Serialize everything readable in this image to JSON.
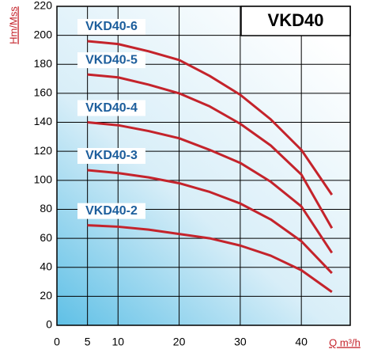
{
  "chart_data": {
    "type": "line",
    "title": "VKD40",
    "y_label": "Hm/Mss",
    "x_label": "Q m³/h",
    "x": [
      5,
      10,
      15,
      20,
      25,
      30,
      35,
      40,
      45
    ],
    "series": [
      {
        "name": "VKD40-6",
        "color": "#c4232b",
        "values": [
          196,
          194,
          189,
          183,
          172,
          159,
          142,
          121,
          90
        ]
      },
      {
        "name": "VKD40-5",
        "color": "#c4232b",
        "values": [
          173,
          171,
          166,
          160,
          151,
          139,
          124,
          104,
          67
        ]
      },
      {
        "name": "VKD40-4",
        "color": "#c4232b",
        "values": [
          140,
          138,
          134,
          129,
          121,
          112,
          99,
          82,
          50
        ]
      },
      {
        "name": "VKD40-3",
        "color": "#c4232b",
        "values": [
          107,
          105,
          102,
          98,
          92,
          84,
          73,
          58,
          36
        ]
      },
      {
        "name": "VKD40-2",
        "color": "#c4232b",
        "values": [
          69,
          68,
          66,
          63,
          60,
          55,
          48,
          38,
          23
        ]
      }
    ],
    "label_color": "#1d5e9c",
    "xlim": [
      0,
      48
    ],
    "xticks": [
      0,
      5,
      10,
      20,
      30,
      40
    ],
    "ylim": [
      0,
      220
    ],
    "yticks": [
      0,
      20,
      40,
      60,
      80,
      100,
      120,
      140,
      160,
      180,
      200,
      220
    ],
    "grid": true
  }
}
